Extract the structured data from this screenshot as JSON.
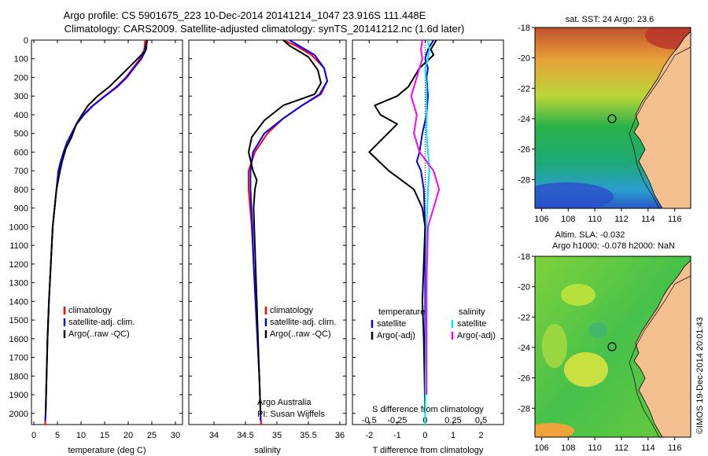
{
  "header": {
    "line1": "Argo profile: CS 5901675_223 10-Dec-2014 20141214_1047 23.916S 111.448E",
    "line2": "Climatology: CARS2009. Satellite-adjusted climatology: synTS_20141212.nc (1.6d later)"
  },
  "colors": {
    "climatology": "#ff0000",
    "satellite": "#0000ff",
    "argo": "#000000",
    "t_satellite": "#0000ff",
    "s_satellite": "#00e5ee",
    "s_argo": "#ff00ff",
    "land": "#f5c08f"
  },
  "chart_data": [
    {
      "type": "line",
      "id": "temperature",
      "xlabel": "temperature (deg C)",
      "ylabel": "",
      "xlim": [
        -0.5,
        31.5
      ],
      "ylim": [
        2060,
        0
      ],
      "y_inverted": true,
      "xticks": [
        0,
        5,
        10,
        15,
        20,
        25,
        30
      ],
      "yticks": [
        0,
        100,
        200,
        300,
        400,
        500,
        600,
        700,
        800,
        900,
        1000,
        1100,
        1200,
        1300,
        1400,
        1500,
        1600,
        1700,
        1800,
        1900,
        2000
      ],
      "legend": [
        "climatology",
        "satellite-adj. clim.",
        "Argo(..raw -QC)"
      ],
      "series": [
        {
          "name": "climatology",
          "color": "#ff0000",
          "points": [
            [
              23.6,
              0
            ],
            [
              23.4,
              50
            ],
            [
              22.5,
              100
            ],
            [
              21,
              150
            ],
            [
              19.5,
              200
            ],
            [
              17.5,
              250
            ],
            [
              15,
              300
            ],
            [
              12.5,
              350
            ],
            [
              10.5,
              400
            ],
            [
              9,
              450
            ],
            [
              8,
              500
            ],
            [
              7,
              550
            ],
            [
              6.3,
              600
            ],
            [
              5.7,
              650
            ],
            [
              5.2,
              700
            ],
            [
              4.8,
              800
            ],
            [
              4.4,
              900
            ],
            [
              4.0,
              1000
            ],
            [
              3.6,
              1200
            ],
            [
              3.2,
              1400
            ],
            [
              2.9,
              1600
            ],
            [
              2.7,
              1800
            ],
            [
              2.5,
              2000
            ],
            [
              2.4,
              2060
            ]
          ]
        },
        {
          "name": "satellite-adj. clim.",
          "color": "#0000ff",
          "points": [
            [
              24,
              0
            ],
            [
              23.8,
              50
            ],
            [
              22.8,
              100
            ],
            [
              21.2,
              150
            ],
            [
              19.7,
              200
            ],
            [
              17.7,
              250
            ],
            [
              15.1,
              300
            ],
            [
              12.6,
              350
            ],
            [
              10.6,
              400
            ],
            [
              9.1,
              450
            ],
            [
              8,
              500
            ],
            [
              7,
              550
            ],
            [
              6.3,
              600
            ],
            [
              5.7,
              650
            ],
            [
              5.2,
              700
            ],
            [
              4.8,
              800
            ],
            [
              4.4,
              900
            ],
            [
              4.0,
              1000
            ],
            [
              3.6,
              1200
            ],
            [
              3.2,
              1400
            ],
            [
              2.9,
              1600
            ],
            [
              2.7,
              1800
            ],
            [
              2.5,
              2000
            ],
            [
              2.4,
              2040
            ]
          ]
        },
        {
          "name": "Argo(..raw -QC)",
          "color": "#000000",
          "points": [
            [
              24,
              0
            ],
            [
              23.5,
              60
            ],
            [
              22,
              100
            ],
            [
              20,
              150
            ],
            [
              18,
              200
            ],
            [
              16,
              250
            ],
            [
              13.5,
              300
            ],
            [
              11.5,
              350
            ],
            [
              10.2,
              400
            ],
            [
              9,
              450
            ],
            [
              8,
              520
            ],
            [
              6.8,
              580
            ],
            [
              6,
              650
            ],
            [
              5.4,
              720
            ],
            [
              4.8,
              800
            ],
            [
              4.4,
              900
            ],
            [
              4.0,
              1000
            ],
            [
              3.6,
              1200
            ],
            [
              3.2,
              1400
            ],
            [
              2.9,
              1600
            ],
            [
              2.7,
              1800
            ],
            [
              2.5,
              2000
            ]
          ]
        }
      ]
    },
    {
      "type": "line",
      "id": "salinity",
      "xlabel": "salinity",
      "ylabel": "",
      "xlim": [
        33.6,
        36.1
      ],
      "ylim": [
        2060,
        0
      ],
      "y_inverted": true,
      "xticks": [
        34,
        34.5,
        35,
        35.5,
        36
      ],
      "xticklabels": [
        "34",
        "34.5",
        "35",
        "35.5",
        "36"
      ],
      "legend": [
        "climatology",
        "satellite-adj. clim.",
        "Argo(..raw -QC)"
      ],
      "annotation": [
        "Argo Australia",
        "PI: Susan Wijffels"
      ],
      "series": [
        {
          "name": "climatology",
          "color": "#ff0000",
          "points": [
            [
              35.1,
              0
            ],
            [
              35.3,
              30
            ],
            [
              35.55,
              80
            ],
            [
              35.75,
              150
            ],
            [
              35.8,
              220
            ],
            [
              35.7,
              290
            ],
            [
              35.4,
              350
            ],
            [
              35.1,
              420
            ],
            [
              34.85,
              500
            ],
            [
              34.65,
              600
            ],
            [
              34.55,
              700
            ],
            [
              34.55,
              800
            ],
            [
              34.6,
              1000
            ],
            [
              34.63,
              1200
            ],
            [
              34.66,
              1400
            ],
            [
              34.69,
              1600
            ],
            [
              34.72,
              1800
            ],
            [
              34.74,
              2000
            ],
            [
              34.75,
              2060
            ]
          ]
        },
        {
          "name": "satellite-adj. clim.",
          "color": "#0000ff",
          "points": [
            [
              35.2,
              0
            ],
            [
              35.35,
              30
            ],
            [
              35.6,
              80
            ],
            [
              35.75,
              150
            ],
            [
              35.8,
              220
            ],
            [
              35.68,
              290
            ],
            [
              35.4,
              350
            ],
            [
              35.1,
              420
            ],
            [
              34.8,
              500
            ],
            [
              34.62,
              600
            ],
            [
              34.58,
              700
            ],
            [
              34.58,
              800
            ],
            [
              34.61,
              1000
            ],
            [
              34.63,
              1200
            ],
            [
              34.66,
              1400
            ],
            [
              34.69,
              1600
            ],
            [
              34.72,
              1800
            ],
            [
              34.74,
              2000
            ],
            [
              34.74,
              2040
            ]
          ]
        },
        {
          "name": "Argo(..raw -QC)",
          "color": "#000000",
          "points": [
            [
              35.1,
              0
            ],
            [
              35.2,
              30
            ],
            [
              35.5,
              90
            ],
            [
              35.65,
              160
            ],
            [
              35.7,
              230
            ],
            [
              35.6,
              290
            ],
            [
              35.1,
              350
            ],
            [
              34.8,
              430
            ],
            [
              34.6,
              520
            ],
            [
              34.55,
              600
            ],
            [
              34.62,
              700
            ],
            [
              34.68,
              750
            ],
            [
              34.65,
              800
            ],
            [
              34.63,
              900
            ],
            [
              34.65,
              1100
            ],
            [
              34.67,
              1300
            ],
            [
              34.69,
              1500
            ],
            [
              34.71,
              1700
            ],
            [
              34.73,
              1900
            ],
            [
              34.74,
              2000
            ]
          ]
        }
      ]
    },
    {
      "type": "line",
      "id": "difference",
      "xlabel": "T difference from climatology",
      "top_label": "S difference from climatology",
      "ylabel": "",
      "xlim": [
        -2.6,
        2.8
      ],
      "ylim": [
        2060,
        0
      ],
      "y_inverted": true,
      "xticks": [
        -2,
        -1,
        0,
        1,
        2
      ],
      "top_ticks": [
        -0.5,
        -0.25,
        0,
        0.25,
        0.5
      ],
      "top_ticklabels": [
        "-0.5",
        "-0.25",
        "0",
        "0.25",
        "0.5"
      ],
      "legend_temperature": [
        "temperature",
        "satellite",
        "Argo(-adj)"
      ],
      "legend_salinity": [
        "salinity",
        "satellite",
        "Argo(-adj)"
      ],
      "series": [
        {
          "name": "satellite",
          "color": "#0000ff",
          "points": [
            [
              0.3,
              0
            ],
            [
              0.1,
              50
            ],
            [
              0,
              100
            ],
            [
              0.1,
              150
            ],
            [
              0.05,
              200
            ],
            [
              0.1,
              300
            ],
            [
              0.05,
              400
            ],
            [
              -0.1,
              500
            ],
            [
              -0.2,
              600
            ],
            [
              -0.3,
              650
            ],
            [
              -0.15,
              700
            ],
            [
              -0.05,
              800
            ],
            [
              0,
              1000
            ],
            [
              0,
              2000
            ]
          ]
        },
        {
          "name": "Argo(-adj)",
          "color": "#000000",
          "points": [
            [
              0.4,
              0
            ],
            [
              0.2,
              50
            ],
            [
              0.3,
              80
            ],
            [
              -0.2,
              150
            ],
            [
              -0.6,
              250
            ],
            [
              -1,
              300
            ],
            [
              -1.8,
              350
            ],
            [
              -1.6,
              400
            ],
            [
              -1,
              450
            ],
            [
              -2,
              600
            ],
            [
              -1.3,
              700
            ],
            [
              -0.4,
              800
            ],
            [
              -0.1,
              900
            ],
            [
              0,
              1000
            ],
            [
              -0.1,
              1400
            ],
            [
              -0.05,
              1600
            ],
            [
              0,
              2000
            ]
          ]
        },
        {
          "name": "satellite",
          "color": "#00e5ee",
          "points": [
            [
              0.1,
              0
            ],
            [
              0.15,
              50
            ],
            [
              0.1,
              100
            ],
            [
              0,
              150
            ],
            [
              0.05,
              250
            ],
            [
              0.05,
              400
            ],
            [
              0.05,
              500
            ],
            [
              0.1,
              600
            ],
            [
              0.15,
              700
            ],
            [
              0.1,
              800
            ],
            [
              0.05,
              1000
            ],
            [
              0.03,
              1500
            ],
            [
              0,
              2060
            ]
          ]
        },
        {
          "name": "Argo(-adj)",
          "color": "#ff00ff",
          "points": [
            [
              -0.1,
              0
            ],
            [
              -0.15,
              50
            ],
            [
              -0.1,
              100
            ],
            [
              -0.3,
              200
            ],
            [
              -0.5,
              300
            ],
            [
              -0.3,
              400
            ],
            [
              -0.4,
              500
            ],
            [
              -0.2,
              600
            ],
            [
              0.3,
              700
            ],
            [
              0.5,
              800
            ],
            [
              0.3,
              900
            ],
            [
              0.1,
              1000
            ],
            [
              0.05,
              1300
            ],
            [
              0.05,
              1600
            ],
            [
              0.05,
              1900
            ]
          ]
        }
      ]
    },
    {
      "type": "heatmap",
      "id": "sst_map",
      "title": "sat. SST: 24 Argo: 23.6",
      "xlim": [
        105.5,
        117.2
      ],
      "ylim": [
        -29.9,
        -18
      ],
      "xticks": [
        106,
        108,
        110,
        112,
        114,
        116
      ],
      "yticks": [
        -18,
        -20,
        -22,
        -24,
        -26,
        -28
      ],
      "argo_position": [
        111.448,
        -23.916
      ]
    },
    {
      "type": "heatmap",
      "id": "sla_map",
      "title_line1": "Altim. SLA: -0.032",
      "title_line2": "Argo h1000: -0.078 h2000: NaN",
      "xlim": [
        105.5,
        117.2
      ],
      "ylim": [
        -29.9,
        -18
      ],
      "xticks": [
        106,
        108,
        110,
        112,
        114,
        116
      ],
      "yticks": [
        -18,
        -20,
        -22,
        -24,
        -26,
        -28
      ],
      "argo_position": [
        111.448,
        -23.916
      ]
    }
  ],
  "credit": "©IMOS 19-Dec-2014 20:01:43"
}
